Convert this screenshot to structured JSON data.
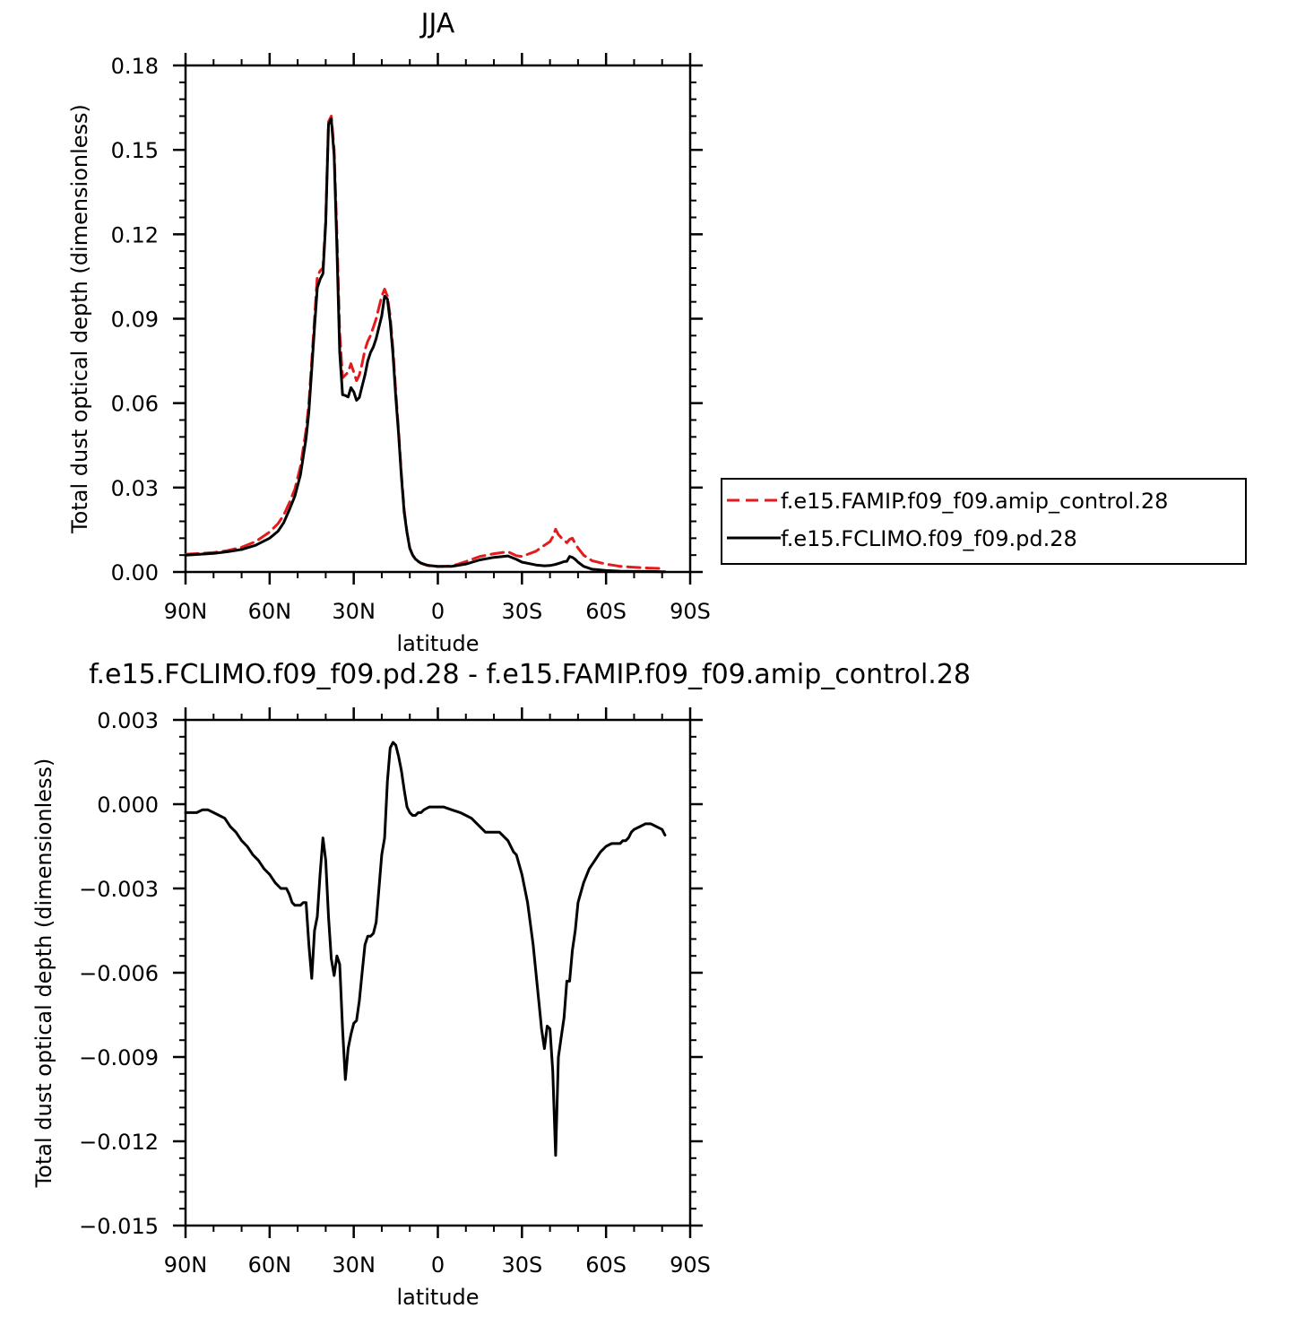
{
  "chart_data": [
    {
      "type": "line",
      "title": "JJA",
      "xlabel": "latitude",
      "ylabel": "Total dust optical depth (dimensionless)",
      "xlim": [
        90,
        -90
      ],
      "ylim": [
        0.0,
        0.18
      ],
      "x_ticks": [
        90,
        60,
        30,
        0,
        -30,
        -60,
        -90
      ],
      "x_tick_labels": [
        "90N",
        "60N",
        "30N",
        "0",
        "30S",
        "60S",
        "90S"
      ],
      "y_ticks": [
        0.0,
        0.03,
        0.06,
        0.09,
        0.12,
        0.15,
        0.18
      ],
      "y_tick_labels": [
        "0.00",
        "0.03",
        "0.06",
        "0.09",
        "0.12",
        "0.15",
        "0.18"
      ],
      "grid": false,
      "legend": "right",
      "series": [
        {
          "name": "f.e15.FAMIP.f09_f09.amip_control.28",
          "color": "#e41a1c",
          "dash": "dashed",
          "x": [
            90,
            85,
            80,
            75,
            70,
            65,
            60,
            57,
            55,
            53,
            51,
            49,
            47,
            46,
            45,
            44,
            43,
            42,
            41,
            40,
            39,
            38,
            37,
            36,
            35,
            34,
            33,
            32,
            31,
            30,
            29,
            28,
            27,
            26,
            25,
            24,
            23,
            22,
            21,
            20,
            19,
            18,
            17,
            16,
            15,
            14,
            13,
            12,
            11,
            10,
            9,
            8,
            7,
            6,
            5,
            4,
            3,
            2,
            0,
            -5,
            -10,
            -15,
            -20,
            -25,
            -28,
            -30,
            -35,
            -38,
            -40,
            -41,
            -42,
            -43,
            -44,
            -45,
            -46,
            -47,
            -48,
            -49,
            -50,
            -52,
            -55,
            -60,
            -65,
            -70,
            -75,
            -80,
            -81
          ],
          "y": [
            0.0063,
            0.0066,
            0.0069,
            0.0076,
            0.0088,
            0.0108,
            0.0142,
            0.0172,
            0.0202,
            0.0245,
            0.0295,
            0.0375,
            0.0505,
            0.06,
            0.075,
            0.09,
            0.105,
            0.107,
            0.108,
            0.125,
            0.16,
            0.162,
            0.15,
            0.12,
            0.085,
            0.069,
            0.07,
            0.071,
            0.074,
            0.071,
            0.068,
            0.07,
            0.074,
            0.079,
            0.082,
            0.084,
            0.087,
            0.09,
            0.094,
            0.098,
            0.1005,
            0.098,
            0.091,
            0.079,
            0.064,
            0.05,
            0.035,
            0.022,
            0.014,
            0.0085,
            0.006,
            0.0045,
            0.0037,
            0.0031,
            0.0027,
            0.0024,
            0.0022,
            0.0021,
            0.0019,
            0.0021,
            0.0037,
            0.0055,
            0.0065,
            0.0072,
            0.0058,
            0.0055,
            0.0074,
            0.0095,
            0.0108,
            0.0125,
            0.0152,
            0.0133,
            0.0122,
            0.0113,
            0.0104,
            0.0116,
            0.012,
            0.01,
            0.0085,
            0.006,
            0.004,
            0.0028,
            0.002,
            0.0017,
            0.0014,
            0.0012,
            0.0012
          ]
        },
        {
          "name": "f.e15.FCLIMO.f09_f09.pd.28",
          "color": "#000000",
          "dash": "solid",
          "x": [
            90,
            85,
            80,
            75,
            70,
            65,
            60,
            57,
            55,
            53,
            51,
            49,
            47,
            46,
            45,
            44,
            43,
            42,
            41,
            40,
            39,
            38,
            37,
            36,
            35,
            34,
            33,
            32,
            31,
            30,
            29,
            28,
            27,
            26,
            25,
            24,
            23,
            22,
            21,
            20,
            19,
            18,
            17,
            16,
            15,
            14,
            13,
            12,
            11,
            10,
            9,
            8,
            7,
            6,
            5,
            4,
            3,
            2,
            0,
            -5,
            -10,
            -15,
            -20,
            -25,
            -28,
            -30,
            -35,
            -38,
            -40,
            -41,
            -42,
            -43,
            -44,
            -45,
            -46,
            -47,
            -48,
            -49,
            -50,
            -52,
            -55,
            -60,
            -65,
            -70,
            -75,
            -80,
            -81
          ],
          "y": [
            0.006,
            0.0063,
            0.0066,
            0.0072,
            0.008,
            0.0095,
            0.012,
            0.0145,
            0.0175,
            0.022,
            0.027,
            0.0345,
            0.0475,
            0.057,
            0.072,
            0.087,
            0.101,
            0.104,
            0.106,
            0.124,
            0.159,
            0.161,
            0.148,
            0.115,
            0.078,
            0.063,
            0.0627,
            0.0622,
            0.0655,
            0.064,
            0.061,
            0.062,
            0.066,
            0.07,
            0.075,
            0.078,
            0.08,
            0.083,
            0.087,
            0.091,
            0.098,
            0.097,
            0.089,
            0.077,
            0.062,
            0.049,
            0.034,
            0.021,
            0.014,
            0.0084,
            0.006,
            0.0046,
            0.0038,
            0.0032,
            0.0028,
            0.0025,
            0.0023,
            0.0022,
            0.002,
            0.002,
            0.0028,
            0.0043,
            0.0052,
            0.0057,
            0.0045,
            0.0035,
            0.0025,
            0.0022,
            0.0023,
            0.0025,
            0.0027,
            0.003,
            0.0033,
            0.0037,
            0.0038,
            0.0055,
            0.0052,
            0.0045,
            0.0035,
            0.002,
            0.001,
            0.0005,
            0.0003,
            0.0002,
            0.0002,
            0.0001,
            0.0001
          ]
        }
      ]
    },
    {
      "type": "line",
      "title": "f.e15.FCLIMO.f09_f09.pd.28 - f.e15.FAMIP.f09_f09.amip_control.28",
      "xlabel": "latitude",
      "ylabel": "Total dust optical depth (dimensionless)",
      "xlim": [
        90,
        -90
      ],
      "ylim": [
        -0.015,
        0.003
      ],
      "x_ticks": [
        90,
        60,
        30,
        0,
        -30,
        -60,
        -90
      ],
      "x_tick_labels": [
        "90N",
        "60N",
        "30N",
        "0",
        "30S",
        "60S",
        "90S"
      ],
      "y_ticks": [
        -0.015,
        -0.012,
        -0.009,
        -0.006,
        -0.003,
        0.0,
        0.003
      ],
      "y_tick_labels": [
        "−0.015",
        "−0.012",
        "−0.009",
        "−0.006",
        "−0.003",
        "0.000",
        "0.003"
      ],
      "grid": false,
      "series": [
        {
          "color": "#000000",
          "x": [
            90,
            88,
            86,
            84,
            83,
            82,
            80,
            78,
            76,
            74,
            72,
            70,
            68,
            66,
            64,
            62,
            60,
            58,
            56,
            55,
            54,
            53,
            52,
            51,
            50,
            49,
            48,
            47,
            46,
            45,
            44,
            43,
            42,
            41,
            40,
            39,
            38,
            37,
            36,
            35,
            34,
            33,
            32,
            31,
            30,
            29,
            28,
            27,
            26,
            25,
            24,
            23,
            22,
            21,
            20,
            19,
            18,
            17,
            16,
            15,
            14,
            13,
            12,
            11,
            10,
            9,
            8,
            7,
            6,
            5,
            3,
            1,
            0,
            -2,
            -5,
            -8,
            -10,
            -12,
            -15,
            -17,
            -20,
            -22,
            -25,
            -27,
            -28,
            -30,
            -32,
            -34,
            -36,
            -37,
            -38,
            -39,
            -40,
            -41,
            -42,
            -43,
            -44,
            -45,
            -46,
            -47,
            -48,
            -49,
            -50,
            -52,
            -54,
            -56,
            -58,
            -60,
            -62,
            -64,
            -65,
            -66,
            -67,
            -68,
            -69,
            -70,
            -72,
            -74,
            -76,
            -78,
            -80,
            -81
          ],
          "y": [
            -0.0003,
            -0.0003,
            -0.0003,
            -0.0002,
            -0.0002,
            -0.0002,
            -0.0003,
            -0.0004,
            -0.0005,
            -0.0008,
            -0.001,
            -0.0013,
            -0.0015,
            -0.0018,
            -0.002,
            -0.0023,
            -0.0025,
            -0.0028,
            -0.003,
            -0.003,
            -0.003,
            -0.0032,
            -0.0035,
            -0.0036,
            -0.0036,
            -0.0036,
            -0.0035,
            -0.0035,
            -0.005,
            -0.0062,
            -0.0045,
            -0.004,
            -0.0025,
            -0.0012,
            -0.002,
            -0.004,
            -0.0055,
            -0.0061,
            -0.0054,
            -0.0057,
            -0.008,
            -0.0098,
            -0.0087,
            -0.0082,
            -0.0078,
            -0.0077,
            -0.007,
            -0.006,
            -0.005,
            -0.0047,
            -0.0047,
            -0.0046,
            -0.0042,
            -0.003,
            -0.0018,
            -0.0012,
            0.0008,
            0.002,
            0.0022,
            0.0021,
            0.0017,
            0.0012,
            0.0005,
            -0.0001,
            -0.0003,
            -0.0004,
            -0.0004,
            -0.0003,
            -0.0003,
            -0.0002,
            -0.0001,
            -0.0001,
            -0.0001,
            -0.0001,
            -0.0002,
            -0.0003,
            -0.0004,
            -0.0005,
            -0.0008,
            -0.001,
            -0.001,
            -0.001,
            -0.0013,
            -0.0017,
            -0.0018,
            -0.0025,
            -0.0035,
            -0.005,
            -0.007,
            -0.008,
            -0.0087,
            -0.0079,
            -0.008,
            -0.0095,
            -0.0125,
            -0.009,
            -0.0083,
            -0.0076,
            -0.0063,
            -0.0063,
            -0.0052,
            -0.0045,
            -0.0035,
            -0.0028,
            -0.0023,
            -0.002,
            -0.0017,
            -0.0015,
            -0.0014,
            -0.0014,
            -0.0014,
            -0.0013,
            -0.0013,
            -0.0012,
            -0.001,
            -0.0009,
            -0.0008,
            -0.0007,
            -0.0007,
            -0.0008,
            -0.0009,
            -0.0011
          ]
        }
      ]
    }
  ]
}
